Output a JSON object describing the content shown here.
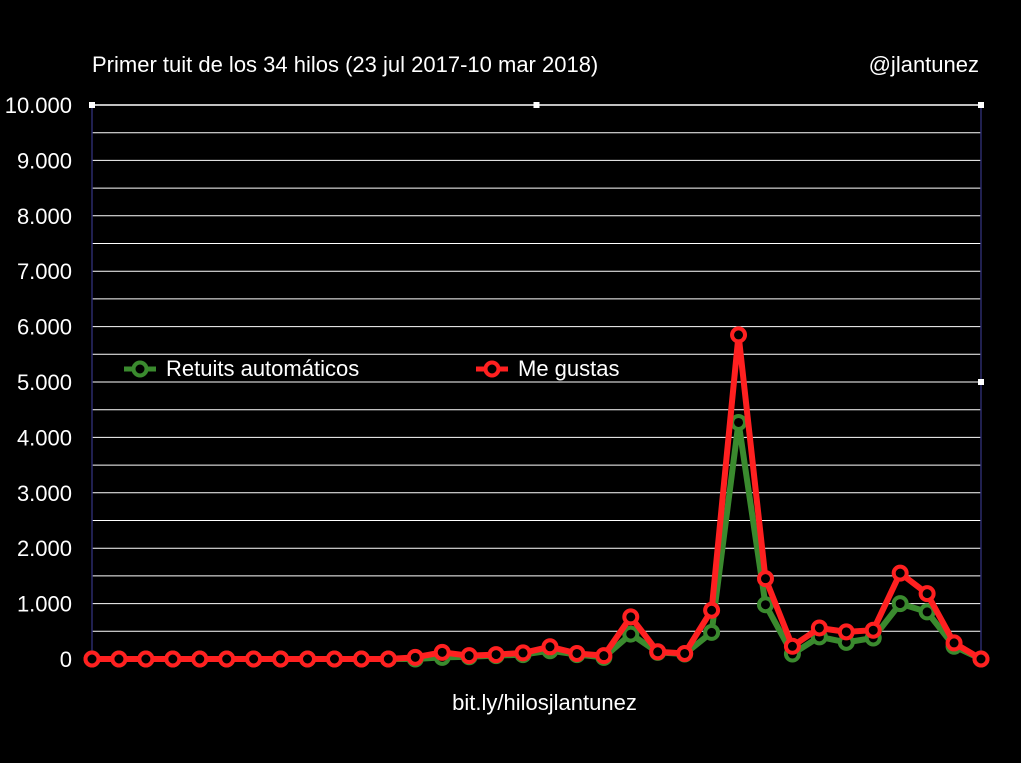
{
  "chart_data": {
    "type": "line",
    "title": "Primer tuit de los 34 hilos (23 jul 2017-10 mar 2018)",
    "author": "@jlantunez",
    "footer": "bit.ly/hilosjlantunez",
    "xlabel": "",
    "ylabel": "",
    "ylim": [
      0,
      10000
    ],
    "y_ticks": [
      "0",
      "1.000",
      "2.000",
      "3.000",
      "4.000",
      "5.000",
      "6.000",
      "7.000",
      "8.000",
      "9.000",
      "10.000"
    ],
    "x": [
      1,
      2,
      3,
      4,
      5,
      6,
      7,
      8,
      9,
      10,
      11,
      12,
      13,
      14,
      15,
      16,
      17,
      18,
      19,
      20,
      21,
      22,
      23,
      24,
      25,
      26,
      27,
      28,
      29,
      30,
      31,
      32,
      33,
      34
    ],
    "legend_placement": "middle-left",
    "grid": true,
    "series": [
      {
        "name": "Retuits automáticos",
        "color": "#3a8a2e",
        "values": [
          0,
          0,
          0,
          0,
          0,
          0,
          0,
          0,
          0,
          0,
          0,
          0,
          0,
          30,
          40,
          60,
          80,
          150,
          80,
          30,
          450,
          120,
          90,
          480,
          4270,
          980,
          90,
          400,
          300,
          380,
          1000,
          850,
          230,
          0
        ]
      },
      {
        "name": "Me gustas",
        "color": "#ff2020",
        "values": [
          0,
          0,
          0,
          0,
          0,
          0,
          0,
          0,
          0,
          0,
          0,
          0,
          30,
          120,
          60,
          80,
          110,
          220,
          100,
          60,
          760,
          130,
          100,
          880,
          5850,
          1450,
          230,
          560,
          490,
          520,
          1550,
          1180,
          290,
          0
        ]
      }
    ]
  }
}
